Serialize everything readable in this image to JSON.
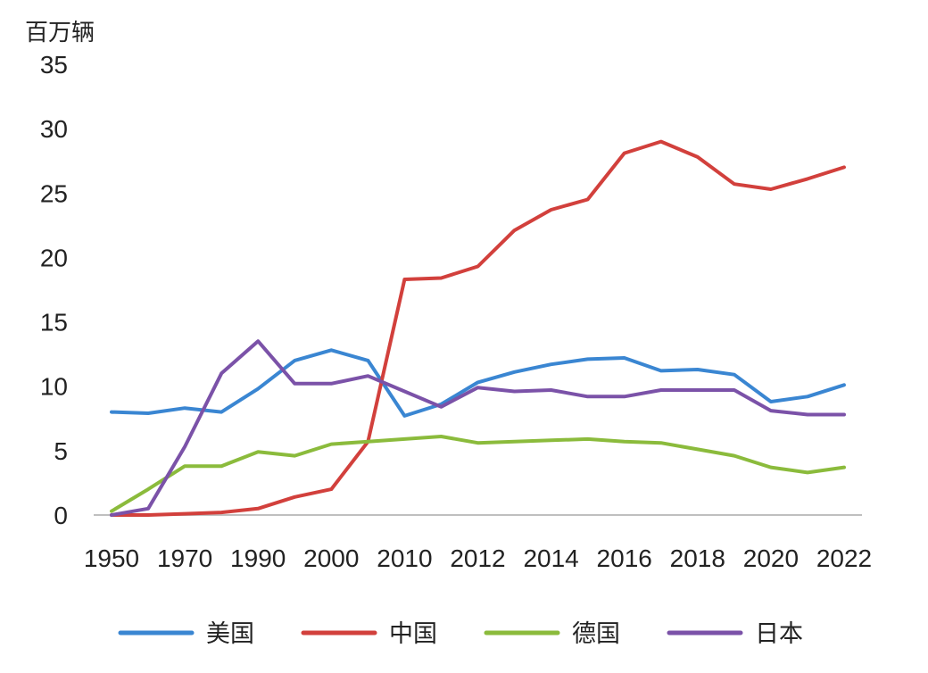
{
  "chart_data": {
    "type": "line",
    "unit_label": "百万辆",
    "x": [
      "1950",
      "1960",
      "1970",
      "1980",
      "1990",
      "1995",
      "2000",
      "2005",
      "2010",
      "2011",
      "2012",
      "2013",
      "2014",
      "2015",
      "2016",
      "2017",
      "2018",
      "2019",
      "2020",
      "2021",
      "2022"
    ],
    "x_tick_labels": [
      "1950",
      "1970",
      "1990",
      "2000",
      "2010",
      "2012",
      "2014",
      "2016",
      "2018",
      "2020",
      "2022"
    ],
    "y_ticks": [
      "0",
      "5",
      "10",
      "15",
      "20",
      "25",
      "30",
      "35"
    ],
    "ylim": [
      0,
      35
    ],
    "grid": false,
    "legend_position": "bottom",
    "series": [
      {
        "name": "美国",
        "color": "#3a86d2",
        "values": [
          8.0,
          7.9,
          8.3,
          8.0,
          9.8,
          12.0,
          12.8,
          12.0,
          7.7,
          8.6,
          10.3,
          11.1,
          11.7,
          12.1,
          12.2,
          11.2,
          11.3,
          10.9,
          8.8,
          9.2,
          10.1
        ]
      },
      {
        "name": "中国",
        "color": "#d2403c",
        "values": [
          0.0,
          0.0,
          0.1,
          0.2,
          0.5,
          1.4,
          2.0,
          5.7,
          18.3,
          18.4,
          19.3,
          22.1,
          23.7,
          24.5,
          28.1,
          29.0,
          27.8,
          25.7,
          25.3,
          26.1,
          27.0
        ]
      },
      {
        "name": "德国",
        "color": "#8bbb3c",
        "values": [
          0.3,
          2.0,
          3.8,
          3.8,
          4.9,
          4.6,
          5.5,
          5.7,
          5.9,
          6.1,
          5.6,
          5.7,
          5.8,
          5.9,
          5.7,
          5.6,
          5.1,
          4.6,
          3.7,
          3.3,
          3.7
        ]
      },
      {
        "name": "日本",
        "color": "#7b52a8",
        "values": [
          0.0,
          0.5,
          5.3,
          11.0,
          13.5,
          10.2,
          10.2,
          10.8,
          9.6,
          8.4,
          9.9,
          9.6,
          9.7,
          9.2,
          9.2,
          9.7,
          9.7,
          9.7,
          8.1,
          7.8,
          7.8
        ]
      }
    ]
  }
}
